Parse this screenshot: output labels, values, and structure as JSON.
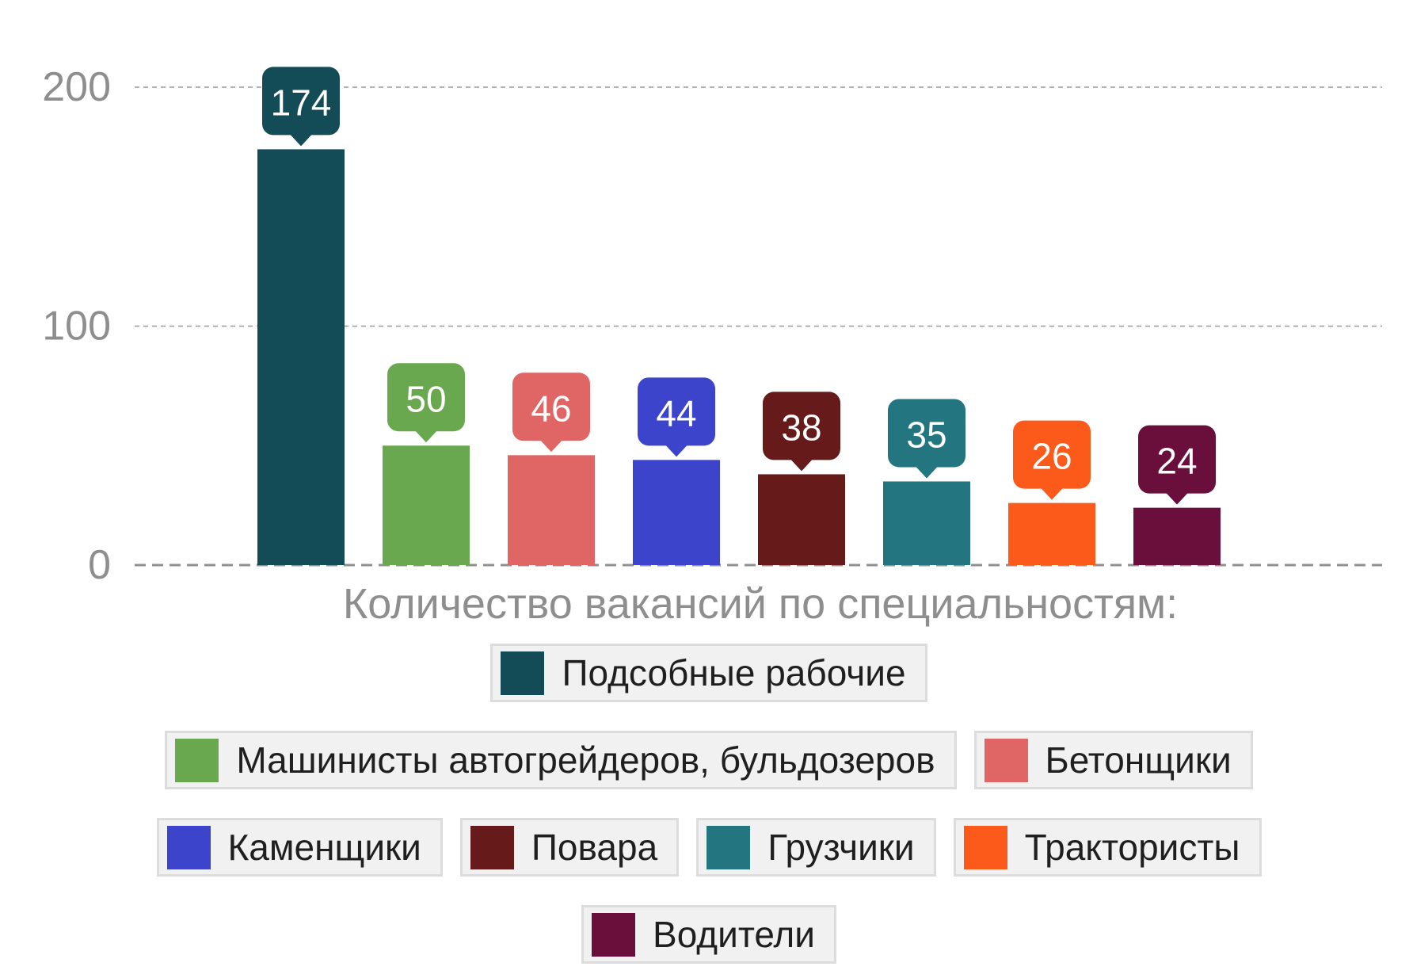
{
  "chart_data": {
    "type": "bar",
    "categories": [
      "Подсобные рабочие",
      "Машинисты автогрейдеров, бульдозеров",
      "Бетонщики",
      "Каменщики",
      "Повара",
      "Грузчики",
      "Трактористы",
      "Водители"
    ],
    "values": [
      174,
      50,
      46,
      44,
      38,
      35,
      26,
      24
    ],
    "colors": [
      "#134b57",
      "#6aa84f",
      "#e06666",
      "#3c44cc",
      "#661a1a",
      "#23757f",
      "#fb5a1a",
      "#6a0f3b"
    ],
    "yticks": [
      0,
      100,
      200
    ],
    "ylim": [
      0,
      200
    ],
    "grid": true,
    "data_labels": true,
    "legend_title": "Количество вакансий по специальностям:",
    "legend_position": "bottom"
  }
}
